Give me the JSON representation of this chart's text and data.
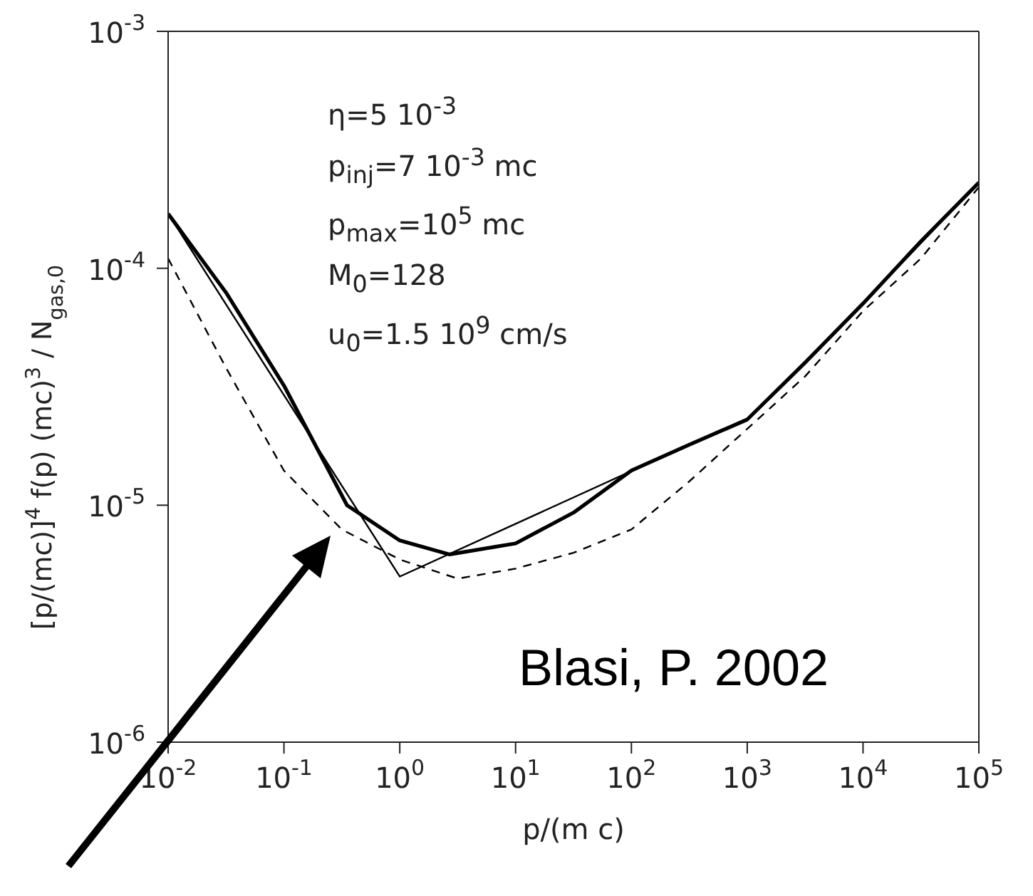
{
  "chart_data": {
    "type": "line",
    "log": "xy",
    "marker": "none",
    "xlabel": "p/(m c)",
    "ylabel": "[p/(mc)]$^{4}$ f(p) (mc)$^{3}$ / N$_{gas,0}$",
    "xlim": [
      0.01,
      100000
    ],
    "ylim": [
      1e-06,
      0.001
    ],
    "xticks": [
      {
        "value": 0.01,
        "label": "10$^{-2}$"
      },
      {
        "value": 0.1,
        "label": "10$^{-1}$"
      },
      {
        "value": 1,
        "label": "10$^{0}$"
      },
      {
        "value": 10,
        "label": "10$^{1}$"
      },
      {
        "value": 100,
        "label": "10$^{2}$"
      },
      {
        "value": 1000,
        "label": "10$^{3}$"
      },
      {
        "value": 10000,
        "label": "10$^{4}$"
      },
      {
        "value": 100000,
        "label": "10$^{5}$"
      }
    ],
    "yticks": [
      {
        "value": 1e-06,
        "label": "10$^{-6}$"
      },
      {
        "value": 1e-05,
        "label": "10$^{-5}$"
      },
      {
        "value": 0.0001,
        "label": "10$^{-4}$"
      },
      {
        "value": 0.001,
        "label": "10$^{-3}$"
      }
    ],
    "series": [
      {
        "color": "#000000",
        "line_style": "solid",
        "x": [
          0.01,
          0.0316,
          0.1,
          0.35,
          1,
          2.7,
          10,
          31.6,
          100,
          316,
          1000,
          3162,
          10000,
          31623,
          100000
        ],
        "values": [
          0.00017,
          7.9e-05,
          3.2e-05,
          1e-05,
          7.1e-06,
          6.2e-06,
          6.9e-06,
          9.3e-06,
          1.4e-05,
          1.8e-05,
          2.3e-05,
          4e-05,
          7.1e-05,
          0.00013,
          0.00023
        ]
      },
      {
        "color": "#000000",
        "line_style": "solid",
        "x": [
          0.01,
          1,
          631,
          1000,
          10000,
          100000
        ],
        "values": [
          0.00017,
          5e-06,
          2.1e-05,
          2.3e-05,
          7.1e-05,
          0.00023
        ]
      },
      {
        "color": "#000000",
        "line_style": "dashed",
        "x": [
          0.01,
          0.0316,
          0.1,
          0.316,
          1,
          3.16,
          10,
          31.6,
          100,
          316,
          1000,
          3162,
          10000,
          31623,
          100000
        ],
        "values": [
          0.00011,
          3.8e-05,
          1.4e-05,
          7.9e-06,
          5.9e-06,
          4.9e-06,
          5.4e-06,
          6.3e-06,
          7.9e-06,
          1.26e-05,
          2.1e-05,
          3.5e-05,
          6.6e-05,
          0.00011,
          0.00022
        ]
      }
    ],
    "annotations": [
      "η=5 10$^{-3}$",
      "p$_{inj}$=7 10$^{-3}$ mc",
      "p$_{max}$=10$^{5}$ mc",
      "M$_{0}$=128",
      "u$_{0}$=1.5 10$^{9}$ cm/s",
      "Blasi, P. 2002"
    ]
  }
}
